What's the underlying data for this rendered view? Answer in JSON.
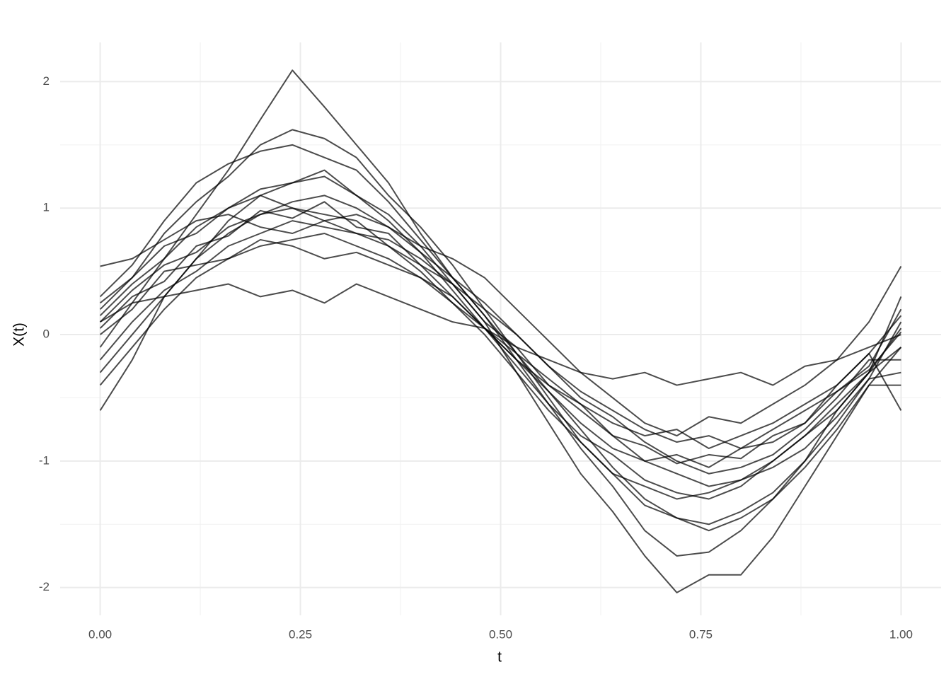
{
  "chart_data": {
    "type": "line",
    "x_label": "t",
    "y_label": "X(t)",
    "xlim": [
      -0.05,
      1.05
    ],
    "ylim": [
      -2.22,
      2.31
    ],
    "xticks": [
      {
        "value": 0,
        "label": "0.00"
      },
      {
        "value": 0.25,
        "label": "0.25"
      },
      {
        "value": 0.5,
        "label": "0.50"
      },
      {
        "value": 0.75,
        "label": "0.75"
      },
      {
        "value": 1,
        "label": "1.00"
      }
    ],
    "yticks": [
      -2,
      -1,
      0,
      1,
      2
    ],
    "xminor": [
      0.125,
      0.375,
      0.625,
      0.875
    ],
    "yminor": [
      -1.5,
      -0.5,
      0.5,
      1.5
    ],
    "grid": true,
    "color": "#000000",
    "x": [
      0,
      0.04,
      0.08,
      0.12,
      0.16,
      0.2,
      0.24,
      0.28,
      0.32,
      0.36,
      0.4,
      0.44,
      0.48,
      0.52,
      0.56,
      0.6,
      0.64,
      0.68,
      0.72,
      0.76,
      0.8,
      0.84,
      0.88,
      0.92,
      0.96,
      1
    ],
    "series": [
      {
        "values": [
          0.05,
          0.3,
          0.42,
          0.7,
          0.78,
          0.98,
          0.92,
          1.05,
          0.85,
          0.8,
          0.55,
          0.4,
          0.1,
          -0.1,
          -0.4,
          -0.55,
          -0.8,
          -0.88,
          -1.02,
          -0.95,
          -0.98,
          -0.8,
          -0.7,
          -0.45,
          -0.28,
          0.02
        ]
      },
      {
        "values": [
          0.2,
          0.45,
          0.8,
          1.05,
          1.25,
          1.5,
          1.62,
          1.55,
          1.4,
          1.1,
          0.85,
          0.55,
          0.2,
          -0.15,
          -0.5,
          -0.85,
          -1.1,
          -1.35,
          -1.45,
          -1.5,
          -1.4,
          -1.25,
          -1.0,
          -0.7,
          -0.35,
          0.1
        ]
      },
      {
        "values": [
          -0.1,
          0.25,
          0.6,
          0.95,
          1.3,
          1.7,
          2.09,
          1.8,
          1.5,
          1.2,
          0.8,
          0.45,
          0.15,
          -0.2,
          -0.55,
          -0.9,
          -1.2,
          -1.55,
          -1.75,
          -1.72,
          -1.55,
          -1.3,
          -1.0,
          -0.6,
          -0.3,
          0.05
        ]
      },
      {
        "values": [
          0.1,
          0.25,
          0.3,
          0.35,
          0.4,
          0.3,
          0.35,
          0.25,
          0.4,
          0.3,
          0.2,
          0.1,
          0.05,
          -0.1,
          -0.2,
          -0.3,
          -0.35,
          -0.3,
          -0.4,
          -0.35,
          -0.3,
          -0.4,
          -0.25,
          -0.2,
          -0.1,
          0.0
        ]
      },
      {
        "values": [
          -0.6,
          -0.2,
          0.3,
          0.6,
          0.9,
          1.1,
          1.2,
          1.3,
          1.1,
          0.95,
          0.7,
          0.4,
          0.1,
          -0.3,
          -0.7,
          -1.1,
          -1.4,
          -1.75,
          -2.04,
          -1.9,
          -1.9,
          -1.6,
          -1.2,
          -0.8,
          -0.4,
          -0.4
        ]
      },
      {
        "values": [
          0.54,
          0.6,
          0.75,
          0.9,
          0.95,
          0.85,
          0.8,
          0.9,
          0.95,
          0.85,
          0.7,
          0.6,
          0.45,
          0.2,
          -0.05,
          -0.3,
          -0.5,
          -0.7,
          -0.8,
          -0.65,
          -0.7,
          -0.55,
          -0.4,
          -0.2,
          0.1,
          0.54
        ]
      },
      {
        "values": [
          0.0,
          0.2,
          0.5,
          0.55,
          0.6,
          0.75,
          0.7,
          0.6,
          0.65,
          0.55,
          0.45,
          0.25,
          0.05,
          -0.2,
          -0.4,
          -0.6,
          -0.8,
          -1.0,
          -1.1,
          -1.2,
          -1.15,
          -1.0,
          -0.8,
          -0.6,
          -0.3,
          -0.1
        ]
      },
      {
        "values": [
          0.3,
          0.55,
          0.9,
          1.2,
          1.35,
          1.45,
          1.5,
          1.4,
          1.3,
          1.05,
          0.75,
          0.45,
          0.15,
          -0.15,
          -0.45,
          -0.75,
          -1.05,
          -1.3,
          -1.45,
          -1.55,
          -1.45,
          -1.3,
          -1.05,
          -0.75,
          -0.4,
          -0.1
        ]
      },
      {
        "values": [
          -0.2,
          0.1,
          0.35,
          0.5,
          0.7,
          0.8,
          0.9,
          0.85,
          0.8,
          0.75,
          0.6,
          0.4,
          0.2,
          0.0,
          -0.25,
          -0.45,
          -0.6,
          -0.75,
          -0.85,
          -0.8,
          -0.9,
          -0.75,
          -0.6,
          -0.45,
          -0.25,
          0.2
        ]
      },
      {
        "values": [
          0.15,
          0.4,
          0.6,
          0.85,
          1.0,
          1.15,
          1.2,
          1.25,
          1.1,
          0.9,
          0.65,
          0.35,
          0.05,
          -0.25,
          -0.55,
          -0.8,
          -0.95,
          -1.15,
          -1.25,
          -1.3,
          -1.2,
          -1.0,
          -0.8,
          -0.55,
          -0.3,
          0.3
        ]
      },
      {
        "values": [
          -0.4,
          -0.1,
          0.2,
          0.45,
          0.6,
          0.7,
          0.75,
          0.8,
          0.7,
          0.6,
          0.45,
          0.3,
          0.05,
          -0.15,
          -0.35,
          -0.55,
          -0.7,
          -0.8,
          -0.75,
          -0.9,
          -0.8,
          -0.7,
          -0.55,
          -0.4,
          -0.15,
          -0.6
        ]
      },
      {
        "values": [
          0.1,
          0.35,
          0.55,
          0.65,
          0.85,
          0.95,
          1.05,
          1.1,
          1.0,
          0.85,
          0.65,
          0.45,
          0.25,
          0.0,
          -0.25,
          -0.5,
          -0.65,
          -0.85,
          -1.0,
          -1.1,
          -1.05,
          -0.95,
          -0.75,
          -0.5,
          -0.2,
          -0.2
        ]
      },
      {
        "values": [
          0.25,
          0.45,
          0.7,
          0.8,
          1.0,
          1.1,
          1.0,
          0.95,
          0.9,
          0.7,
          0.55,
          0.3,
          0.05,
          -0.2,
          -0.45,
          -0.7,
          -0.9,
          -1.0,
          -0.95,
          -1.05,
          -0.9,
          -0.85,
          -0.7,
          -0.4,
          -0.15,
          0.15
        ]
      },
      {
        "values": [
          -0.3,
          0.0,
          0.3,
          0.6,
          0.8,
          0.95,
          1.0,
          0.9,
          0.8,
          0.7,
          0.5,
          0.25,
          0.0,
          -0.3,
          -0.6,
          -0.85,
          -1.1,
          -1.2,
          -1.3,
          -1.25,
          -1.15,
          -1.05,
          -0.9,
          -0.65,
          -0.35,
          -0.3
        ]
      }
    ]
  }
}
